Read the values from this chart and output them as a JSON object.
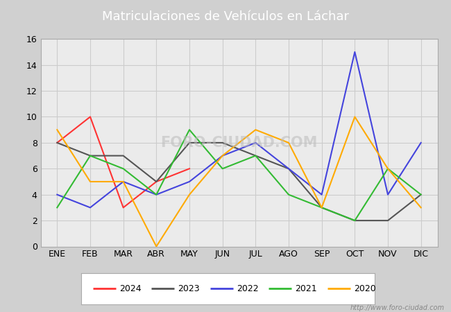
{
  "title": "Matriculaciones de Vehículos en Láchar",
  "months": [
    "ENE",
    "FEB",
    "MAR",
    "ABR",
    "MAY",
    "JUN",
    "JUL",
    "AGO",
    "SEP",
    "OCT",
    "NOV",
    "DIC"
  ],
  "series_order": [
    "2024",
    "2023",
    "2022",
    "2021",
    "2020"
  ],
  "series": {
    "2024": [
      8,
      10,
      3,
      5,
      6,
      null,
      null,
      null,
      null,
      null,
      null,
      null
    ],
    "2023": [
      8,
      7,
      7,
      5,
      8,
      8,
      7,
      6,
      3,
      2,
      2,
      4
    ],
    "2022": [
      4,
      3,
      5,
      4,
      5,
      7,
      8,
      6,
      4,
      15,
      4,
      8
    ],
    "2021": [
      3,
      7,
      6,
      4,
      9,
      6,
      7,
      4,
      3,
      2,
      6,
      4
    ],
    "2020": [
      9,
      5,
      5,
      0,
      4,
      7,
      9,
      8,
      3,
      10,
      6,
      3
    ]
  },
  "colors": {
    "2024": "#ff3333",
    "2023": "#555555",
    "2022": "#4444dd",
    "2021": "#33bb33",
    "2020": "#ffaa00"
  },
  "ylim": [
    0,
    16
  ],
  "yticks": [
    0,
    2,
    4,
    6,
    8,
    10,
    12,
    14,
    16
  ],
  "grid_color": "#cccccc",
  "outer_bg": "#d0d0d0",
  "plot_bg": "#ebebeb",
  "title_bg": "#5b8dc8",
  "title_color": "white",
  "title_fontsize": 13,
  "footer_text": "http://www.foro-ciudad.com",
  "watermark_text": "FORO-CIUDAD.COM",
  "linewidth": 1.5
}
